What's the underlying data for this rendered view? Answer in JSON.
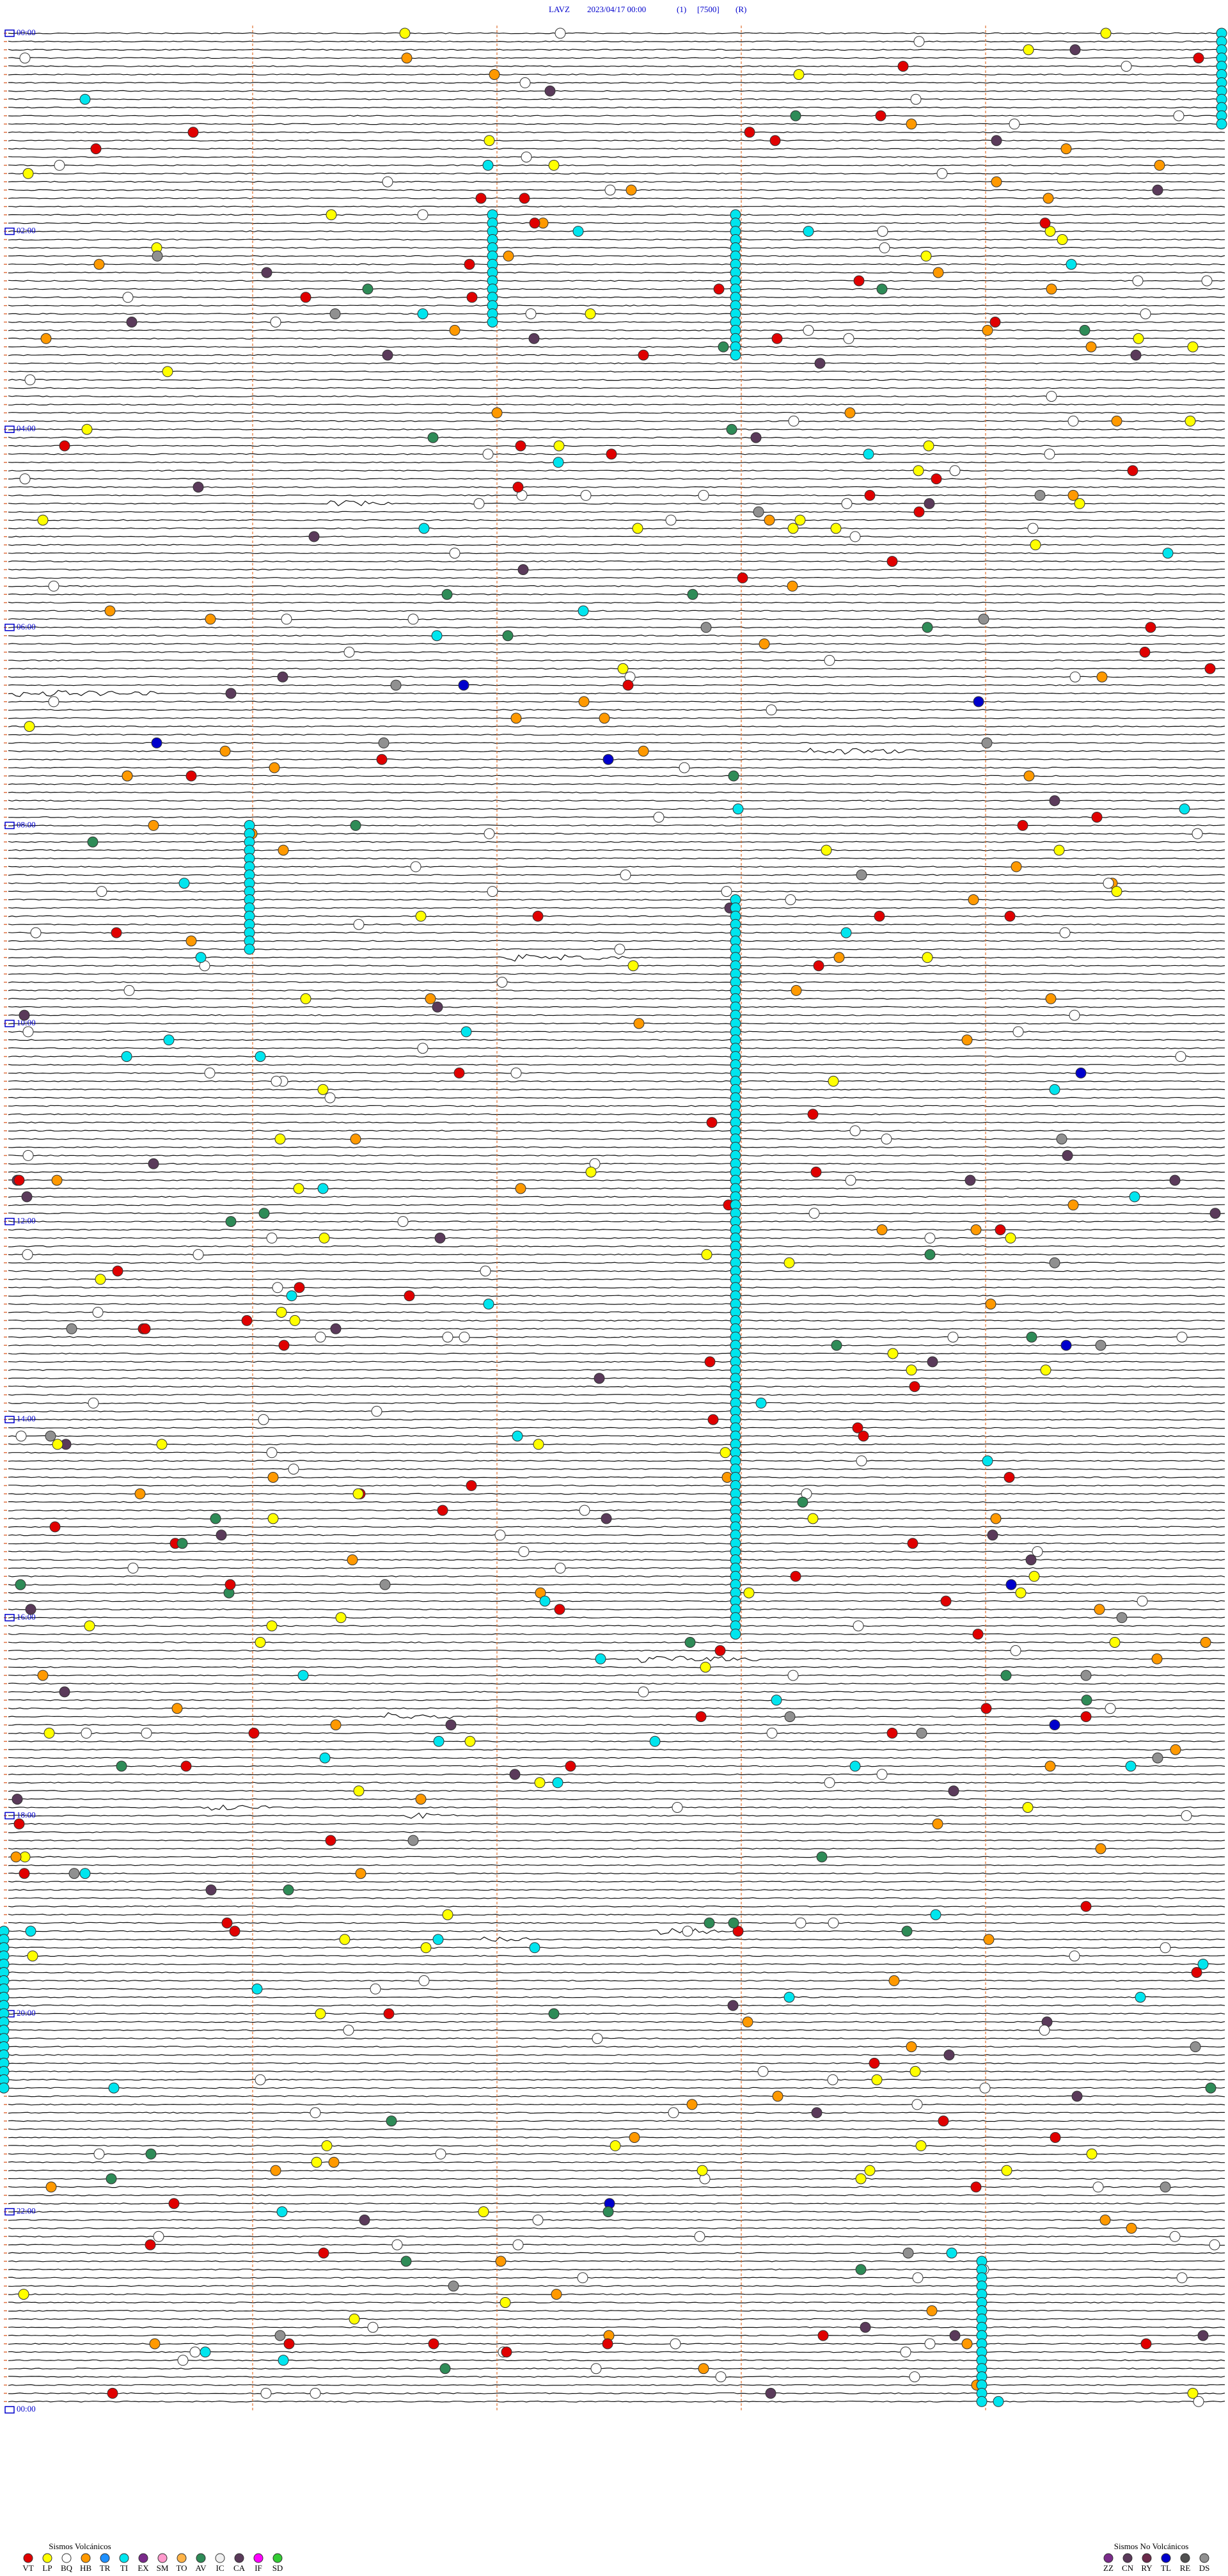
{
  "header": {
    "title": [
      "LAVZ",
      "2023/04/17 00:00",
      "(1)",
      "[7500]",
      "(R)"
    ]
  },
  "time_labels": [
    "00:00",
    "02:00",
    "04:00",
    "06:00",
    "08:00",
    "10:00",
    "12:00",
    "14:00",
    "16:00",
    "18:00",
    "20:00",
    "22:00",
    "00:00"
  ],
  "legend": {
    "volcanic": {
      "title": "Sismos Volcánicos",
      "items": [
        {
          "code": "VT",
          "color": "#e00000"
        },
        {
          "code": "LP",
          "color": "#ffff00"
        },
        {
          "code": "BQ",
          "color": "#ffffff"
        },
        {
          "code": "HB",
          "color": "#ff9900"
        },
        {
          "code": "TR",
          "color": "#1e90ff"
        },
        {
          "code": "TI",
          "color": "#00e5ee"
        },
        {
          "code": "EX",
          "color": "#7a2a8a"
        },
        {
          "code": "SM",
          "color": "#ff99cc"
        },
        {
          "code": "TO",
          "color": "#ffb347"
        },
        {
          "code": "AV",
          "color": "#2e8b57"
        },
        {
          "code": "IC",
          "color": "#f0f0f0"
        },
        {
          "code": "CA",
          "color": "#5a3a5a"
        },
        {
          "code": "IF",
          "color": "#ff00ff"
        },
        {
          "code": "SD",
          "color": "#33cc33"
        }
      ]
    },
    "non_volcanic": {
      "title": "Sismos No Volcánicos",
      "items": [
        {
          "code": "ZZ",
          "color": "#7a2a8a"
        },
        {
          "code": "CN",
          "color": "#5a3a5a"
        },
        {
          "code": "RY",
          "color": "#6a2a4a"
        },
        {
          "code": "TL",
          "color": "#0000cc"
        },
        {
          "code": "RE",
          "color": "#505050"
        },
        {
          "code": "DS",
          "color": "#909090"
        }
      ]
    }
  }
}
